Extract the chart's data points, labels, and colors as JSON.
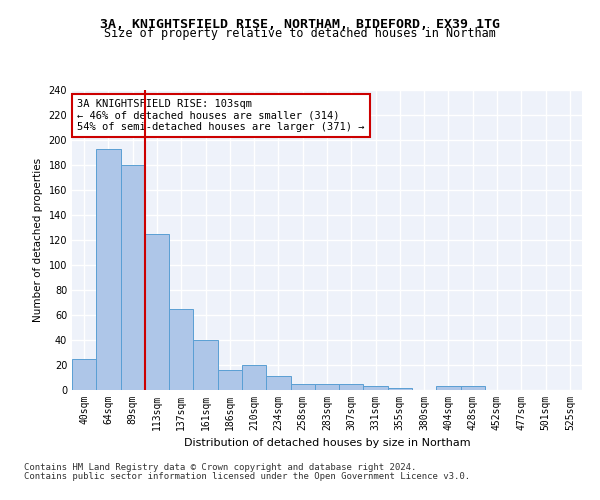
{
  "title1": "3A, KNIGHTSFIELD RISE, NORTHAM, BIDEFORD, EX39 1TG",
  "title2": "Size of property relative to detached houses in Northam",
  "xlabel": "Distribution of detached houses by size in Northam",
  "ylabel": "Number of detached properties",
  "footnote1": "Contains HM Land Registry data © Crown copyright and database right 2024.",
  "footnote2": "Contains public sector information licensed under the Open Government Licence v3.0.",
  "bins": [
    "40sqm",
    "64sqm",
    "89sqm",
    "113sqm",
    "137sqm",
    "161sqm",
    "186sqm",
    "210sqm",
    "234sqm",
    "258sqm",
    "283sqm",
    "307sqm",
    "331sqm",
    "355sqm",
    "380sqm",
    "404sqm",
    "428sqm",
    "452sqm",
    "477sqm",
    "501sqm",
    "525sqm"
  ],
  "values": [
    25,
    193,
    180,
    125,
    65,
    40,
    16,
    20,
    11,
    5,
    5,
    5,
    3,
    2,
    0,
    3,
    3,
    0,
    0,
    0,
    0
  ],
  "bar_color": "#aec6e8",
  "bar_edge_color": "#5a9fd4",
  "vline_color": "#cc0000",
  "annotation_text": "3A KNIGHTSFIELD RISE: 103sqm\n← 46% of detached houses are smaller (314)\n54% of semi-detached houses are larger (371) →",
  "annotation_box_color": "#ffffff",
  "annotation_box_edge_color": "#cc0000",
  "ylim": [
    0,
    240
  ],
  "yticks": [
    0,
    20,
    40,
    60,
    80,
    100,
    120,
    140,
    160,
    180,
    200,
    220,
    240
  ],
  "bg_color": "#eef2fa",
  "grid_color": "#ffffff",
  "title1_fontsize": 9.5,
  "title2_fontsize": 8.5,
  "xlabel_fontsize": 8,
  "ylabel_fontsize": 7.5,
  "tick_fontsize": 7,
  "footnote_fontsize": 6.5,
  "annotation_fontsize": 7.5
}
